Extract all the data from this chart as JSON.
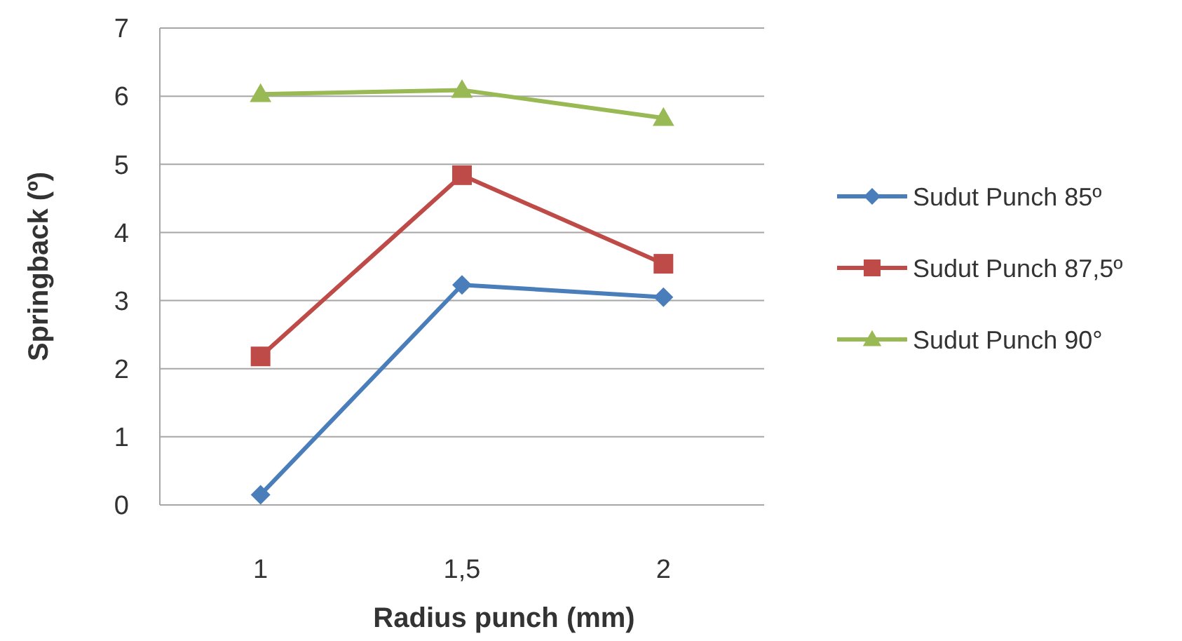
{
  "chart_data": {
    "type": "line",
    "xlabel": "Radius punch (mm)",
    "ylabel": "Springback (º)",
    "categories": [
      "1",
      "1,5",
      "2"
    ],
    "series": [
      {
        "name": "Sudut Punch 85º",
        "color": "#4a7ebb",
        "marker": "diamond",
        "values": [
          0.15,
          3.23,
          3.05
        ]
      },
      {
        "name": "Sudut Punch 87,5º",
        "color": "#be4b48",
        "marker": "square",
        "values": [
          2.18,
          4.84,
          3.54
        ]
      },
      {
        "name": "Sudut Punch 90°",
        "color": "#98b954",
        "marker": "triangle",
        "values": [
          6.03,
          6.09,
          5.68
        ]
      }
    ],
    "ylim": [
      0,
      7
    ],
    "yticks": [
      0,
      1,
      2,
      3,
      4,
      5,
      6,
      7
    ],
    "grid": "y",
    "legend": "right"
  }
}
